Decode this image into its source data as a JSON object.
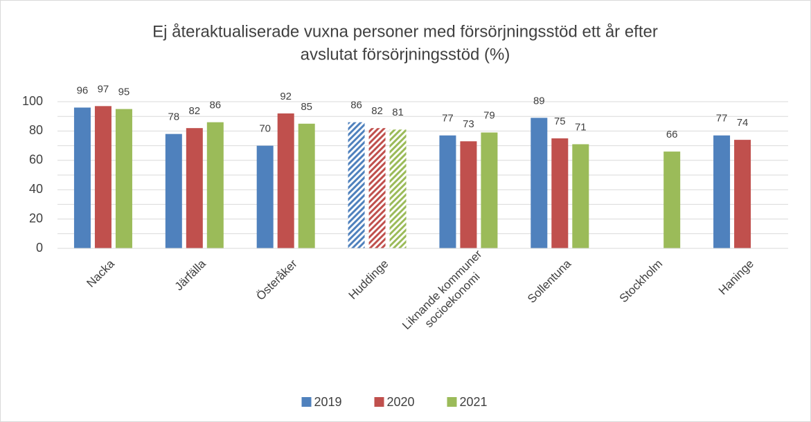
{
  "chart_data": {
    "type": "bar",
    "title": [
      "Ej återaktualiserade vuxna personer med försörjningsstöd ett år efter",
      "avslutat försörjningsstöd (%)"
    ],
    "categories": [
      "Nacka",
      "Järfälla",
      "Österåker",
      "Huddinge",
      "Liknande kommuner socioekonomi",
      "Sollentuna",
      "Stockholm",
      "Haninge"
    ],
    "series": [
      {
        "name": "2019",
        "color": "#4f81bd",
        "values": [
          96,
          78,
          70,
          86,
          77,
          89,
          null,
          77
        ]
      },
      {
        "name": "2020",
        "color": "#c0504d",
        "values": [
          97,
          82,
          92,
          82,
          73,
          75,
          null,
          74
        ]
      },
      {
        "name": "2021",
        "color": "#9bbb59",
        "values": [
          95,
          86,
          85,
          81,
          79,
          71,
          66,
          null
        ]
      }
    ],
    "hatched": [
      3
    ],
    "ylim": [
      0,
      100
    ],
    "yticks": [
      0,
      20,
      40,
      60,
      80,
      100
    ],
    "minor_yticks": [
      10,
      30,
      50,
      70,
      90
    ],
    "grid": true,
    "legend": "bottom"
  }
}
